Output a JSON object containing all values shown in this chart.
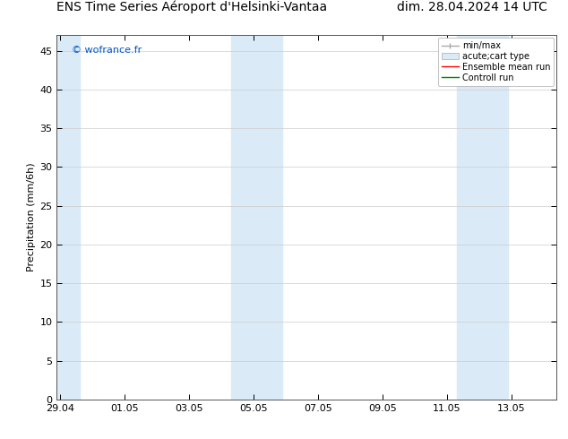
{
  "title_left": "ENS Time Series Aéroport d'Helsinki-Vantaa",
  "title_right": "dim. 28.04.2024 14 UTC",
  "ylabel": "Precipitation (mm/6h)",
  "watermark": "© wofrance.fr",
  "watermark_color": "#0055cc",
  "ylim": [
    0,
    47
  ],
  "yticks": [
    0,
    5,
    10,
    15,
    20,
    25,
    30,
    35,
    40,
    45
  ],
  "xtick_labels": [
    "29.04",
    "01.05",
    "03.05",
    "05.05",
    "07.05",
    "09.05",
    "11.05",
    "13.05"
  ],
  "xtick_positions": [
    0,
    2,
    4,
    6,
    8,
    10,
    12,
    14
  ],
  "x_min": -0.1,
  "x_max": 15.4,
  "band_color": "#daeaf7",
  "bands": [
    [
      -0.1,
      0.6
    ],
    [
      5.3,
      6.1
    ],
    [
      6.1,
      6.9
    ],
    [
      12.3,
      13.1
    ],
    [
      13.1,
      13.9
    ]
  ],
  "background_color": "#ffffff",
  "grid_color": "#cccccc",
  "spine_color": "#555555",
  "title_fontsize": 10,
  "axis_fontsize": 8,
  "tick_fontsize": 8,
  "legend_fontsize": 7,
  "watermark_fontsize": 8
}
